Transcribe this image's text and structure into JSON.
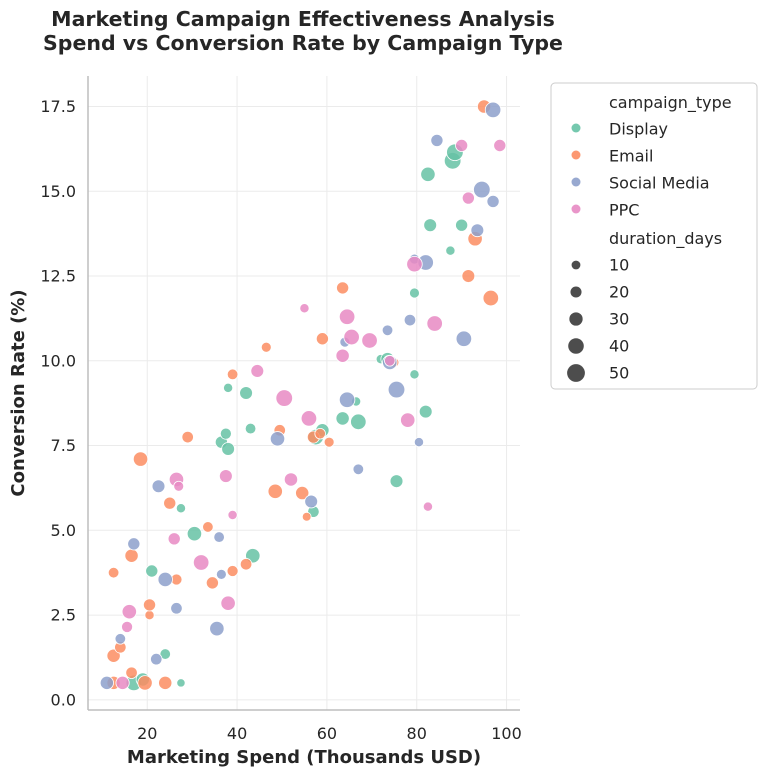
{
  "chart_data": {
    "type": "scatter",
    "title": "Marketing Campaign Effectiveness Analysis",
    "subtitle": "Spend vs Conversion Rate by Campaign Type",
    "xlabel": "Marketing Spend (Thousands USD)",
    "ylabel": "Conversion Rate (%)",
    "xlim": [
      6.8,
      103
    ],
    "ylim": [
      -0.3,
      18.4
    ],
    "x_ticks": [
      20,
      40,
      60,
      80,
      100
    ],
    "y_ticks": [
      0.0,
      2.5,
      5.0,
      7.5,
      10.0,
      12.5,
      15.0,
      17.5
    ],
    "grid": true,
    "legend_position": "outside-right",
    "hue_title": "campaign_type",
    "size_title": "duration_days",
    "size_legend": [
      10,
      20,
      30,
      40,
      50
    ],
    "colors": {
      "Display": "#66c2a5",
      "Email": "#fc8d62",
      "Social Media": "#8da0cb",
      "PPC": "#e78ac3"
    },
    "series": [
      {
        "name": "Display",
        "points": [
          [
            17,
            0.5,
            40
          ],
          [
            19,
            0.6,
            30
          ],
          [
            21,
            3.8,
            25
          ],
          [
            24,
            1.35,
            18
          ],
          [
            27.5,
            0.5,
            8
          ],
          [
            27.5,
            5.65,
            12
          ],
          [
            30.5,
            4.9,
            35
          ],
          [
            36.5,
            7.6,
            25
          ],
          [
            37.5,
            7.85,
            20
          ],
          [
            38,
            7.4,
            28
          ],
          [
            38,
            9.2,
            12
          ],
          [
            42,
            9.05,
            28
          ],
          [
            43,
            8.0,
            18
          ],
          [
            43.5,
            4.25,
            35
          ],
          [
            57,
            5.55,
            22
          ],
          [
            57.5,
            7.75,
            40
          ],
          [
            59,
            7.95,
            30
          ],
          [
            63.5,
            8.3,
            30
          ],
          [
            66.5,
            8.8,
            12
          ],
          [
            67,
            8.2,
            40
          ],
          [
            72,
            10.05,
            12
          ],
          [
            73.5,
            10.05,
            30
          ],
          [
            75.5,
            6.45,
            28
          ],
          [
            79.5,
            9.6,
            12
          ],
          [
            79.5,
            12.0,
            15
          ],
          [
            82,
            8.5,
            28
          ],
          [
            82.5,
            15.5,
            35
          ],
          [
            83,
            14.0,
            28
          ],
          [
            87.5,
            13.25,
            12
          ],
          [
            88,
            15.9,
            45
          ],
          [
            88.5,
            16.15,
            45
          ],
          [
            90,
            14.0,
            25
          ]
        ]
      },
      {
        "name": "Email",
        "points": [
          [
            12.5,
            3.75,
            18
          ],
          [
            12.5,
            1.3,
            30
          ],
          [
            12.5,
            0.5,
            30
          ],
          [
            14,
            1.55,
            22
          ],
          [
            16.5,
            4.25,
            30
          ],
          [
            16.5,
            0.8,
            22
          ],
          [
            18.5,
            7.1,
            35
          ],
          [
            19.5,
            0.5,
            35
          ],
          [
            20.5,
            2.5,
            12
          ],
          [
            20.5,
            2.8,
            25
          ],
          [
            24,
            0.5,
            30
          ],
          [
            25,
            5.8,
            25
          ],
          [
            26.5,
            3.55,
            20
          ],
          [
            29,
            7.75,
            22
          ],
          [
            33.5,
            5.1,
            18
          ],
          [
            34.5,
            3.45,
            25
          ],
          [
            39,
            3.8,
            20
          ],
          [
            39,
            9.6,
            18
          ],
          [
            42,
            4.0,
            22
          ],
          [
            46.5,
            10.4,
            15
          ],
          [
            48.5,
            6.15,
            35
          ],
          [
            49.5,
            7.95,
            22
          ],
          [
            54.5,
            6.1,
            30
          ],
          [
            55.5,
            5.4,
            10
          ],
          [
            57,
            7.75,
            25
          ],
          [
            58.5,
            7.85,
            18
          ],
          [
            59,
            10.65,
            25
          ],
          [
            60.5,
            7.6,
            15
          ],
          [
            63.5,
            12.15,
            25
          ],
          [
            75,
            9.95,
            12
          ],
          [
            91.5,
            12.5,
            28
          ],
          [
            93,
            13.6,
            35
          ],
          [
            95,
            17.5,
            30
          ],
          [
            96.5,
            11.85,
            40
          ]
        ]
      },
      {
        "name": "Social Media",
        "points": [
          [
            11,
            0.5,
            30
          ],
          [
            14,
            1.8,
            18
          ],
          [
            17,
            4.6,
            25
          ],
          [
            22,
            1.2,
            22
          ],
          [
            22.5,
            6.3,
            28
          ],
          [
            24,
            3.55,
            35
          ],
          [
            26.5,
            2.7,
            22
          ],
          [
            35.5,
            2.1,
            35
          ],
          [
            36,
            4.8,
            18
          ],
          [
            36.5,
            3.7,
            15
          ],
          [
            49,
            7.7,
            35
          ],
          [
            56.5,
            5.85,
            28
          ],
          [
            64,
            10.55,
            15
          ],
          [
            64.5,
            8.85,
            40
          ],
          [
            67,
            6.8,
            18
          ],
          [
            73.5,
            10.9,
            18
          ],
          [
            74,
            9.95,
            35
          ],
          [
            75.5,
            9.15,
            45
          ],
          [
            78.5,
            11.2,
            22
          ],
          [
            79.5,
            13.0,
            15
          ],
          [
            80.5,
            7.6,
            12
          ],
          [
            82,
            12.9,
            40
          ],
          [
            84.5,
            16.5,
            25
          ],
          [
            90.5,
            10.65,
            40
          ],
          [
            93.5,
            13.85,
            28
          ],
          [
            94.5,
            15.05,
            45
          ],
          [
            97,
            17.4,
            40
          ],
          [
            97,
            14.7,
            25
          ]
        ]
      },
      {
        "name": "PPC",
        "points": [
          [
            14.5,
            0.5,
            30
          ],
          [
            15.5,
            2.15,
            20
          ],
          [
            16,
            2.6,
            35
          ],
          [
            26,
            4.75,
            25
          ],
          [
            26.5,
            6.5,
            35
          ],
          [
            27,
            6.3,
            15
          ],
          [
            32,
            4.05,
            40
          ],
          [
            37.5,
            6.6,
            28
          ],
          [
            38,
            2.85,
            35
          ],
          [
            39,
            5.45,
            12
          ],
          [
            44.5,
            9.7,
            28
          ],
          [
            50.5,
            8.9,
            45
          ],
          [
            52,
            6.5,
            30
          ],
          [
            55,
            11.55,
            12
          ],
          [
            56,
            8.3,
            40
          ],
          [
            63.5,
            10.15,
            30
          ],
          [
            64.5,
            11.3,
            40
          ],
          [
            65.5,
            10.7,
            40
          ],
          [
            69.5,
            10.6,
            40
          ],
          [
            74,
            10.0,
            18
          ],
          [
            78,
            8.25,
            35
          ],
          [
            79.5,
            12.85,
            40
          ],
          [
            82.5,
            5.7,
            12
          ],
          [
            84,
            11.1,
            40
          ],
          [
            90,
            16.35,
            25
          ],
          [
            91.5,
            14.8,
            25
          ],
          [
            98.5,
            16.35,
            25
          ]
        ]
      }
    ]
  }
}
